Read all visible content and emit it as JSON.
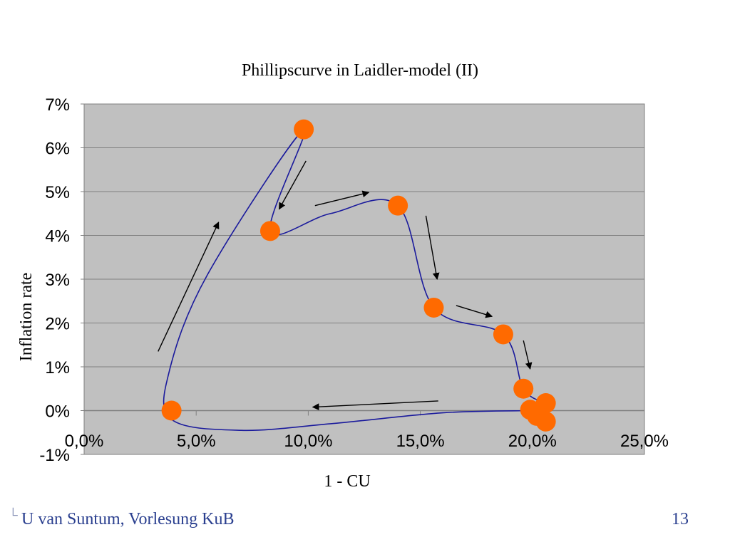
{
  "slide": {
    "footer_author": "U van Suntum, Vorlesung KuB",
    "footer_mark": "└",
    "page_number": "13"
  },
  "colors": {
    "plot_bg": "#c0c0c0",
    "curve": "#1a1a9c",
    "marker": "#ff6a00",
    "arrow": "#000000",
    "gridline": "#7f7f7f",
    "footer_text": "#2a3f8f"
  },
  "chart_data": {
    "type": "scatter",
    "title": "Phillipscurve in Laidler-model (II)",
    "xlabel": "1 - CU",
    "ylabel": "Inflation rate",
    "xlim": [
      0,
      25
    ],
    "ylim": [
      -1,
      7
    ],
    "x_ticks": [
      0,
      5,
      10,
      15,
      20,
      25
    ],
    "x_tick_labels": [
      "0,0%",
      "5,0%",
      "10,0%",
      "15,0%",
      "20,0%",
      "25,0%"
    ],
    "y_ticks": [
      -1,
      0,
      1,
      2,
      3,
      4,
      5,
      6,
      7
    ],
    "y_tick_labels": [
      "-1%",
      "0%",
      "1%",
      "2%",
      "3%",
      "4%",
      "5%",
      "6%",
      "7%"
    ],
    "grid": true,
    "legend": false,
    "points": [
      {
        "x": 3.9,
        "y": 0.0
      },
      {
        "x": 9.8,
        "y": 6.42
      },
      {
        "x": 8.3,
        "y": 4.1
      },
      {
        "x": 14.0,
        "y": 4.68
      },
      {
        "x": 15.6,
        "y": 2.35
      },
      {
        "x": 18.7,
        "y": 1.74
      },
      {
        "x": 19.6,
        "y": 0.5
      },
      {
        "x": 20.6,
        "y": 0.17
      },
      {
        "x": 19.9,
        "y": 0.02
      },
      {
        "x": 20.2,
        "y": -0.12
      },
      {
        "x": 20.6,
        "y": -0.25
      }
    ],
    "curve_points": [
      {
        "x": 19.9,
        "y": 0.0
      },
      {
        "x": 16.0,
        "y": -0.05
      },
      {
        "x": 11.0,
        "y": -0.3
      },
      {
        "x": 7.0,
        "y": -0.45
      },
      {
        "x": 3.9,
        "y": -0.2
      },
      {
        "x": 3.8,
        "y": 0.9
      },
      {
        "x": 5.5,
        "y": 3.1
      },
      {
        "x": 9.8,
        "y": 6.42
      },
      {
        "x": 8.3,
        "y": 4.1
      },
      {
        "x": 11.0,
        "y": 4.5
      },
      {
        "x": 14.0,
        "y": 4.68
      },
      {
        "x": 15.6,
        "y": 2.35
      },
      {
        "x": 18.7,
        "y": 1.74
      },
      {
        "x": 19.6,
        "y": 0.5
      },
      {
        "x": 20.6,
        "y": 0.17
      }
    ],
    "arrows": [
      {
        "from": [
          3.3,
          1.35
        ],
        "to": [
          6.0,
          4.3
        ]
      },
      {
        "from": [
          9.9,
          5.7
        ],
        "to": [
          8.7,
          4.6
        ]
      },
      {
        "from": [
          10.3,
          4.68
        ],
        "to": [
          12.7,
          4.98
        ]
      },
      {
        "from": [
          15.25,
          4.45
        ],
        "to": [
          15.75,
          3.0
        ]
      },
      {
        "from": [
          16.6,
          2.4
        ],
        "to": [
          18.2,
          2.15
        ]
      },
      {
        "from": [
          19.6,
          1.6
        ],
        "to": [
          19.9,
          0.95
        ]
      },
      {
        "from": [
          15.8,
          0.22
        ],
        "to": [
          10.2,
          0.08
        ]
      }
    ]
  }
}
